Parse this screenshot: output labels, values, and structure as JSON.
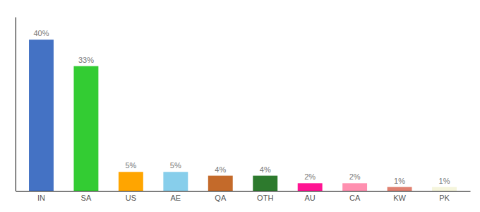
{
  "chart_data": {
    "type": "bar",
    "categories": [
      "IN",
      "SA",
      "US",
      "AE",
      "QA",
      "OTH",
      "AU",
      "CA",
      "KW",
      "PK"
    ],
    "values": [
      40,
      33,
      5,
      5,
      4,
      4,
      2,
      2,
      1,
      1
    ],
    "value_labels": [
      "40%",
      "33%",
      "5%",
      "5%",
      "4%",
      "4%",
      "2%",
      "2%",
      "1%",
      "1%"
    ],
    "colors": [
      "#4472C4",
      "#33CC33",
      "#FFA500",
      "#87CEEB",
      "#C46A2A",
      "#2D7A2D",
      "#FF1493",
      "#FF90B0",
      "#E08070",
      "#F5F5DC"
    ],
    "ylim": [
      0,
      46
    ],
    "grid": false,
    "data_labels": true,
    "tick_labels": "x"
  }
}
